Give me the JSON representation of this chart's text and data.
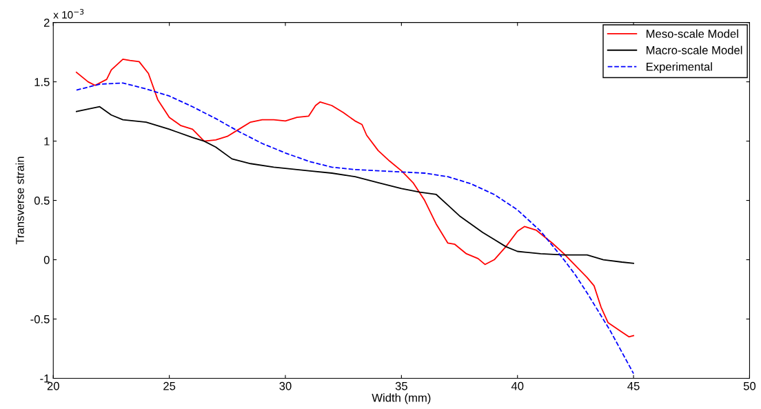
{
  "chart_data": {
    "type": "line",
    "xlabel": "Width (mm)",
    "ylabel": "Transverse strain",
    "annotations": [
      "x 10$^{−3}$"
    ],
    "xlim": [
      20,
      50
    ],
    "xticks": [
      20,
      25,
      30,
      35,
      40,
      45,
      50
    ],
    "ylim": [
      -1,
      2
    ],
    "yticks": [
      -1,
      -0.5,
      0,
      0.5,
      1,
      1.5,
      2
    ],
    "grid": false,
    "legend": "top right",
    "series": [
      {
        "name": "Meso-scale Model",
        "color": "#ff0000",
        "line_style": "solid",
        "x": [
          21,
          21.5,
          21.8,
          22.3,
          22.5,
          23,
          23.3,
          23.7,
          24.1,
          24.5,
          25,
          25.5,
          26,
          26.5,
          27,
          27.5,
          28,
          28.5,
          29,
          29.5,
          30,
          30.5,
          31,
          31.3,
          31.5,
          32,
          32.5,
          33,
          33.3,
          33.5,
          34,
          34.5,
          35,
          35.5,
          36,
          36.5,
          37,
          37.3,
          37.8,
          38.3,
          38.6,
          39,
          39.5,
          40,
          40.3,
          40.8,
          41.5,
          42,
          42.5,
          43,
          43.3,
          43.6,
          43.9,
          44.5,
          44.8,
          45
        ],
        "values": [
          1.58,
          1.5,
          1.47,
          1.52,
          1.6,
          1.69,
          1.68,
          1.67,
          1.57,
          1.35,
          1.2,
          1.13,
          1.1,
          1.0,
          1.01,
          1.04,
          1.1,
          1.16,
          1.18,
          1.18,
          1.17,
          1.2,
          1.21,
          1.3,
          1.33,
          1.3,
          1.24,
          1.17,
          1.14,
          1.05,
          0.92,
          0.83,
          0.75,
          0.65,
          0.5,
          0.3,
          0.14,
          0.13,
          0.05,
          0.01,
          -0.04,
          0.0,
          0.11,
          0.24,
          0.28,
          0.25,
          0.14,
          0.05,
          -0.05,
          -0.15,
          -0.22,
          -0.4,
          -0.53,
          -0.61,
          -0.65,
          -0.64
        ]
      },
      {
        "name": "Macro-scale Model",
        "color": "#000000",
        "line_style": "solid",
        "x": [
          21,
          21.5,
          22,
          22.5,
          23,
          24,
          25,
          26,
          26.5,
          27,
          27.7,
          28.5,
          29.5,
          31,
          32,
          33,
          34,
          35,
          35.8,
          36.5,
          37,
          37.5,
          38,
          38.5,
          39,
          39.5,
          40,
          41,
          42,
          43,
          43.7,
          44.5,
          45
        ],
        "values": [
          1.25,
          1.27,
          1.29,
          1.22,
          1.18,
          1.16,
          1.1,
          1.03,
          1.0,
          0.95,
          0.85,
          0.81,
          0.78,
          0.75,
          0.73,
          0.7,
          0.65,
          0.6,
          0.57,
          0.55,
          0.46,
          0.37,
          0.3,
          0.23,
          0.17,
          0.11,
          0.07,
          0.05,
          0.04,
          0.04,
          0.0,
          -0.02,
          -0.03
        ]
      },
      {
        "name": "Experimental",
        "color": "#0000ff",
        "line_style": "dashed",
        "x": [
          21,
          22,
          23,
          24,
          25,
          26,
          27,
          28,
          29,
          30,
          31,
          32,
          33,
          34,
          35,
          36,
          37,
          38,
          39,
          40,
          41,
          41.5,
          42,
          42.5,
          43,
          43.5,
          44,
          44.5,
          45
        ],
        "values": [
          1.43,
          1.48,
          1.49,
          1.44,
          1.38,
          1.29,
          1.19,
          1.08,
          0.98,
          0.9,
          0.83,
          0.78,
          0.76,
          0.75,
          0.74,
          0.73,
          0.7,
          0.64,
          0.55,
          0.42,
          0.24,
          0.12,
          0.0,
          -0.13,
          -0.28,
          -0.44,
          -0.6,
          -0.78,
          -0.96
        ]
      }
    ]
  }
}
